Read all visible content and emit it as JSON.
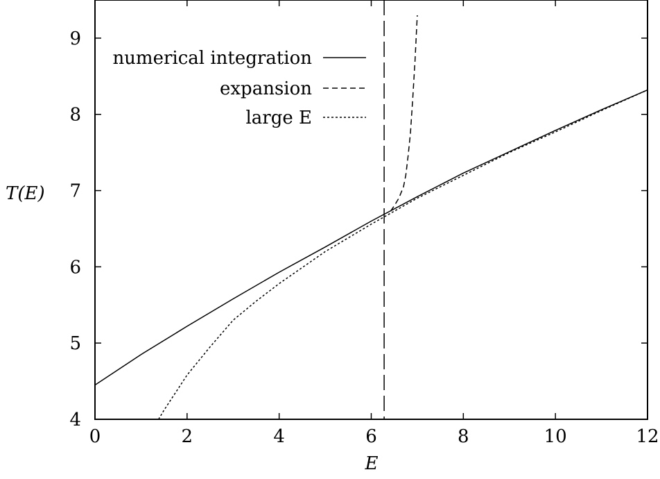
{
  "chart_data": {
    "type": "line",
    "xlabel": "E",
    "ylabel": "T(E)",
    "xlim": [
      0,
      12
    ],
    "ylim": [
      4,
      9.5
    ],
    "x_ticks": [
      "0",
      "2",
      "4",
      "6",
      "8",
      "10",
      "12"
    ],
    "y_ticks": [
      "4",
      "5",
      "6",
      "7",
      "8",
      "9"
    ],
    "grid": false,
    "legend_position": "top-left",
    "vertical_reference_line": {
      "x": 6.28,
      "style": "long-dash"
    },
    "series": [
      {
        "name": "numerical integration",
        "style": "solid",
        "color": "#000000",
        "x": [
          0,
          1,
          2,
          3,
          4,
          5,
          6,
          7,
          8,
          9,
          10,
          11,
          12
        ],
        "y": [
          4.45,
          4.85,
          5.22,
          5.58,
          5.93,
          6.26,
          6.6,
          6.92,
          7.23,
          7.51,
          7.79,
          8.06,
          8.32
        ]
      },
      {
        "name": "expansion",
        "style": "dashed",
        "color": "#000000",
        "x": [
          6.42,
          6.5,
          6.6,
          6.7,
          6.75,
          6.8,
          6.85,
          6.9,
          6.95,
          7.0
        ],
        "y": [
          6.73,
          6.8,
          6.9,
          7.05,
          7.2,
          7.45,
          7.75,
          8.2,
          8.7,
          9.3
        ]
      },
      {
        "name": "large E",
        "style": "dotted",
        "color": "#000000",
        "x": [
          1.38,
          1.5,
          1.75,
          2,
          2.5,
          3,
          3.5,
          4,
          5,
          6,
          7,
          8,
          9,
          10,
          11,
          12
        ],
        "y": [
          4.0,
          4.12,
          4.35,
          4.58,
          4.95,
          5.3,
          5.55,
          5.78,
          6.2,
          6.56,
          6.9,
          7.2,
          7.5,
          7.77,
          8.05,
          8.32
        ]
      }
    ]
  }
}
